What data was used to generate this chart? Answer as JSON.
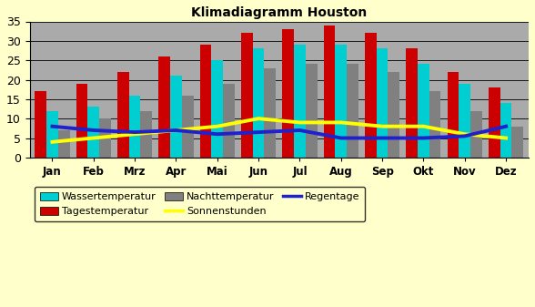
{
  "title": "Klimadiagramm Houston",
  "months": [
    "Jan",
    "Feb",
    "Mrz",
    "Apr",
    "Mai",
    "Jun",
    "Jul",
    "Aug",
    "Sep",
    "Okt",
    "Nov",
    "Dez"
  ],
  "wassertemperatur": [
    12,
    13,
    16,
    21,
    25,
    28,
    29,
    29,
    28,
    24,
    19,
    14
  ],
  "tagestemperatur": [
    17,
    19,
    22,
    26,
    29,
    32,
    33,
    34,
    32,
    28,
    22,
    18
  ],
  "nachttemperatur": [
    7,
    10,
    12,
    16,
    19,
    23,
    24,
    24,
    22,
    17,
    12,
    8
  ],
  "sonnenstunden": [
    4,
    5,
    6,
    7,
    8,
    10,
    9,
    9,
    8,
    8,
    6,
    5
  ],
  "regentage": [
    8,
    7,
    6.5,
    7,
    6,
    6.5,
    7,
    5,
    5,
    5,
    5.5,
    8
  ],
  "ylim": [
    0,
    35
  ],
  "yticks": [
    0,
    5,
    10,
    15,
    20,
    25,
    30,
    35
  ],
  "color_wasser": "#00CED1",
  "color_tages": "#CC0000",
  "color_nacht": "#808080",
  "color_sonnen": "#FFFF00",
  "color_regen": "#2020CC",
  "bg_outer": "#FFFFCC",
  "bg_plot": "#AAAAAA",
  "bar_width": 0.28
}
